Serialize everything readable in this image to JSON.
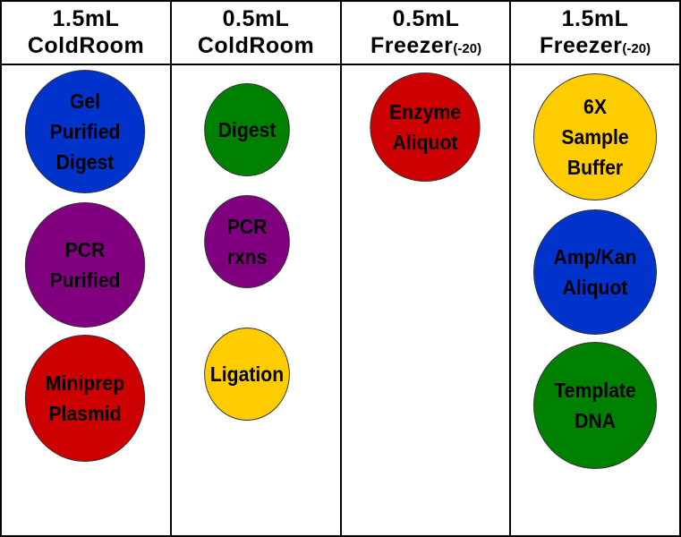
{
  "columns": [
    {
      "line1": "1.5mL",
      "line2": "ColdRoom",
      "suffix": "",
      "tubes": [
        {
          "label": "Gel\nPurified\nDigest",
          "color": "#0033cc"
        },
        {
          "label": "PCR\nPurified",
          "color": "#800080"
        },
        {
          "label": "Miniprep\nPlasmid",
          "color": "#cc0000"
        }
      ]
    },
    {
      "line1": "0.5mL",
      "line2": "ColdRoom",
      "suffix": "",
      "tubes": [
        {
          "label": "Digest",
          "color": "#008000"
        },
        {
          "label": "PCR\nrxns",
          "color": "#800080"
        },
        {
          "label": "Ligation",
          "color": "#ffcc00"
        }
      ]
    },
    {
      "line1": "0.5mL",
      "line2": "Freezer",
      "suffix": "(-20)",
      "tubes": [
        {
          "label": "Enzyme\nAliquot",
          "color": "#cc0000"
        }
      ]
    },
    {
      "line1": "1.5mL",
      "line2": "Freezer",
      "suffix": "(-20)",
      "tubes": [
        {
          "label": "6X\nSample\nBuffer",
          "color": "#ffcc00"
        },
        {
          "label": "Amp/Kan\nAliquot",
          "color": "#0033cc"
        },
        {
          "label": "Template\nDNA",
          "color": "#008000"
        }
      ]
    }
  ]
}
